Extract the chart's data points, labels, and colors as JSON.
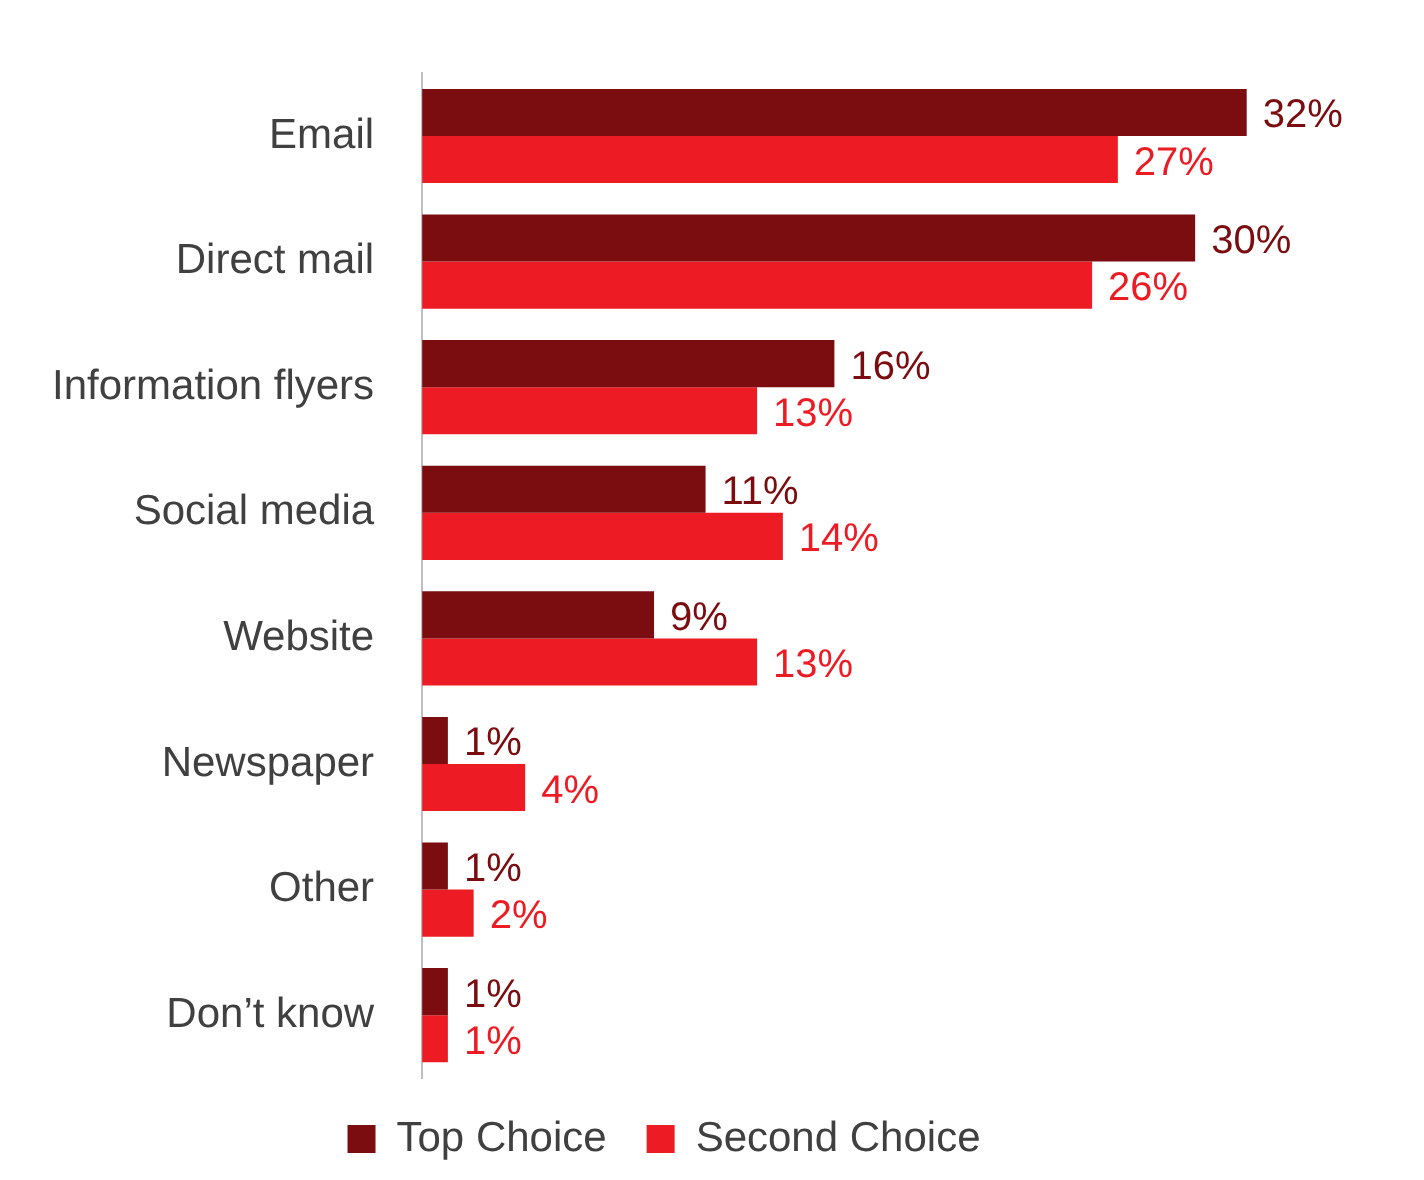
{
  "chart_data": {
    "type": "bar",
    "orientation": "horizontal",
    "categories": [
      "Email",
      "Direct mail",
      "Information flyers",
      "Social media",
      "Website",
      "Newspaper",
      "Other",
      "Don’t know"
    ],
    "series": [
      {
        "name": "Top Choice",
        "color": "#7b0c10",
        "values": [
          32,
          30,
          16,
          11,
          9,
          1,
          1,
          1
        ],
        "value_labels": [
          "32%",
          "30%",
          "16%",
          "11%",
          "9%",
          "1%",
          "1%",
          "1%"
        ]
      },
      {
        "name": "Second Choice",
        "color": "#ed1c24",
        "values": [
          27,
          26,
          13,
          14,
          13,
          4,
          2,
          1
        ],
        "value_labels": [
          "27%",
          "26%",
          "13%",
          "14%",
          "13%",
          "4%",
          "2%",
          "1%"
        ]
      }
    ],
    "legend": "bottom",
    "grid": false,
    "tick_labels": "y"
  }
}
